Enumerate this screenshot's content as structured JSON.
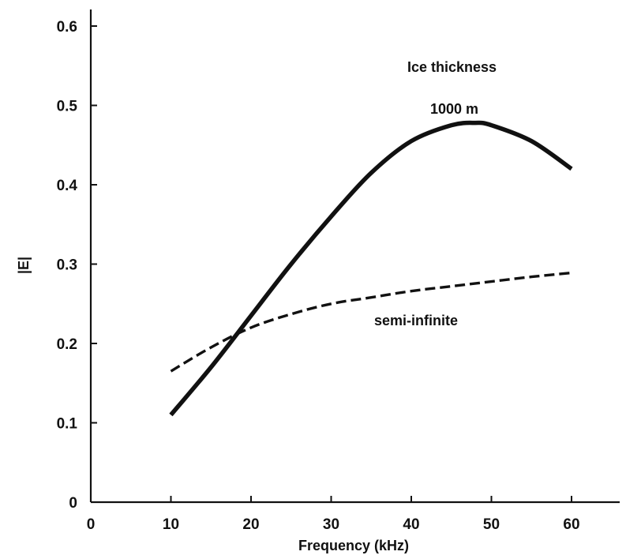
{
  "chart_data": {
    "type": "line",
    "title": "",
    "xlabel": "Frequency (kHz)",
    "ylabel": "|E|",
    "xlim": [
      0,
      67
    ],
    "ylim": [
      0,
      0.62
    ],
    "grid": false,
    "legend": "none",
    "x_ticks": [
      "0",
      "10",
      "20",
      "30",
      "40",
      "50",
      "60"
    ],
    "y_ticks": [
      "0",
      "0.1",
      "0.2",
      "0.3",
      "0.4",
      "0.5",
      "0.6"
    ],
    "annotations": {
      "header": "Ice thickness",
      "solid_label": "1000 m",
      "dashed_label": "semi-infinite"
    },
    "series": [
      {
        "name": "1000 m",
        "style": "solid",
        "color": "#111111",
        "x": [
          10,
          15,
          20,
          25,
          30,
          35,
          40,
          45,
          48,
          50,
          55,
          60
        ],
        "y": [
          0.11,
          0.17,
          0.235,
          0.3,
          0.36,
          0.415,
          0.455,
          0.475,
          0.478,
          0.475,
          0.455,
          0.42
        ]
      },
      {
        "name": "semi-infinite",
        "style": "dashed",
        "color": "#111111",
        "x": [
          10,
          15,
          20,
          25,
          30,
          35,
          40,
          45,
          50,
          55,
          60
        ],
        "y": [
          0.165,
          0.195,
          0.22,
          0.237,
          0.25,
          0.258,
          0.266,
          0.272,
          0.278,
          0.284,
          0.289
        ]
      }
    ]
  }
}
